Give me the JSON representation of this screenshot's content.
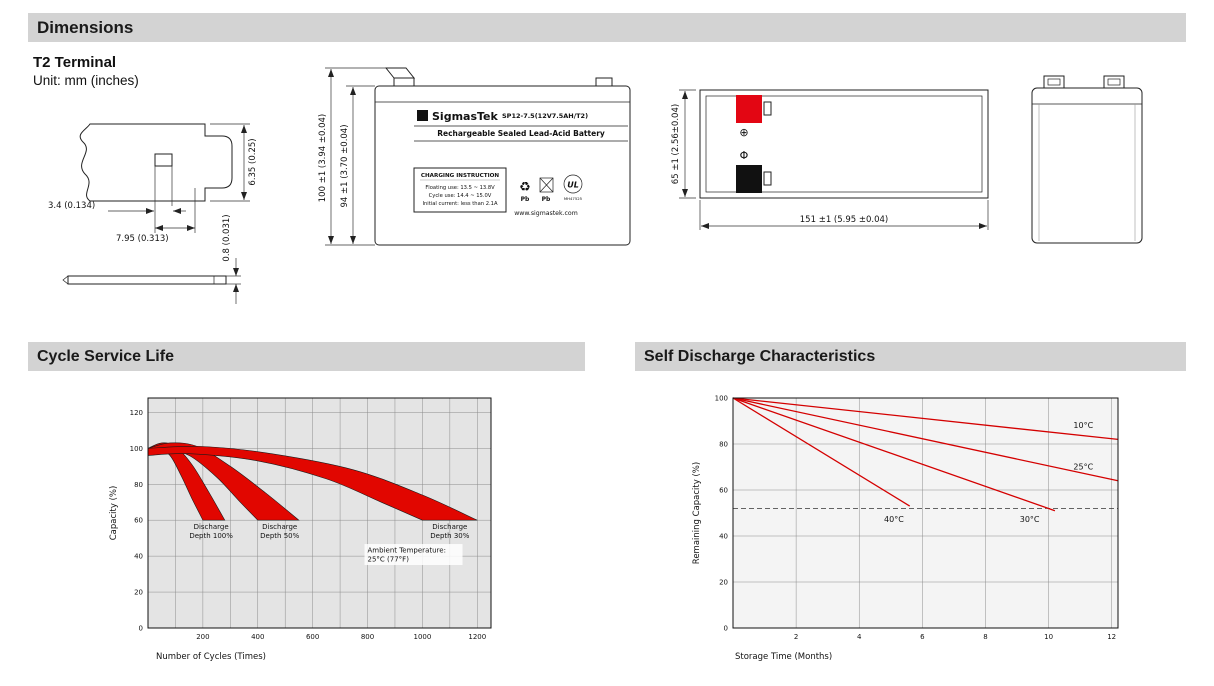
{
  "colors": {
    "header_bg": "#d3d3d3",
    "header_text": "#1a1a1a",
    "terminal_red": "#e30613",
    "terminal_black": "#111111",
    "band_red": "#e10600",
    "line_red": "#d40000"
  },
  "page": {
    "dimensions_title": "Dimensions",
    "terminal_title": "T2 Terminal",
    "unit_label": "Unit: mm (inches)",
    "cycle_section_title": "Cycle Service Life",
    "self_discharge_section_title": "Self Discharge Characteristics"
  },
  "terminal_drawing": {
    "dim_slot_width": "3.4 (0.134)",
    "dim_tab_width": "7.95 (0.313)",
    "dim_height": "6.35 (0.25)",
    "dim_thickness": "0.8 (0.031)"
  },
  "front_view": {
    "dim_total_height": "100 ±1 (3.94 ±0.04)",
    "dim_case_height": "94 ±1 (3.70 ±0.04)",
    "brand_sigma": "Σ",
    "brand": "SigmasTek",
    "model": "SP12-7.5(12V7.5AH/T2)",
    "subtitle": "Rechargeable Sealed Lead-Acid Battery",
    "charging_title": "CHARGING INSTRUCTION",
    "charging_line1": "Floating use: 13.5 ~ 13.8V",
    "charging_line2": "Cycle use: 14.4 ~ 15.0V",
    "charging_line3": "Initial current: less than 2.1A",
    "pb_recycle": "Pb",
    "pb_trash": "Pb",
    "ul_text": "UL",
    "ul_code": "MH47525",
    "website": "www.sigmastek.com"
  },
  "top_view": {
    "dim_height": "65 ±1 (2.56±0.04)",
    "dim_width": "151 ±1 (5.95 ±0.04)",
    "plus_symbol": "⊕",
    "minus_symbol": "Φ"
  },
  "chart_data": [
    {
      "id": "cycle-service-life",
      "type": "area",
      "title": "Cycle Service Life",
      "xlabel": "Number of Cycles (Times)",
      "ylabel": "Capacity (%)",
      "xlim": [
        0,
        1250
      ],
      "ylim": [
        0,
        128
      ],
      "xticks": [
        200,
        400,
        600,
        800,
        1000,
        1200
      ],
      "yticks": [
        0,
        20,
        40,
        60,
        80,
        100,
        120
      ],
      "x_grid_step": 100,
      "y_grid_step": 20,
      "grid": true,
      "legend_position": "none",
      "plot_bg": "#e4e4e4",
      "band_color": "#e10600",
      "bands": [
        {
          "name": "Discharge Depth 100%",
          "end_cycles": 280,
          "upper": [
            [
              0,
              100
            ],
            [
              50,
              103
            ],
            [
              100,
              101
            ],
            [
              160,
              91
            ],
            [
              220,
              76
            ],
            [
              280,
              60
            ]
          ],
          "lower": [
            [
              0,
              96
            ],
            [
              40,
              99
            ],
            [
              80,
              96
            ],
            [
              120,
              85
            ],
            [
              160,
              72
            ],
            [
              200,
              60
            ]
          ],
          "label_x": 230,
          "label_y": 55
        },
        {
          "name": "Discharge Depth 50%",
          "end_cycles": 550,
          "upper": [
            [
              0,
              100
            ],
            [
              80,
              103
            ],
            [
              180,
              101
            ],
            [
              300,
              90
            ],
            [
              430,
              75
            ],
            [
              550,
              60
            ]
          ],
          "lower": [
            [
              0,
              96
            ],
            [
              60,
              99
            ],
            [
              150,
              96
            ],
            [
              250,
              84
            ],
            [
              330,
              71
            ],
            [
              400,
              60
            ]
          ],
          "label_x": 480,
          "label_y": 55
        },
        {
          "name": "Discharge Depth 30%",
          "end_cycles": 1200,
          "upper": [
            [
              0,
              100
            ],
            [
              200,
              101
            ],
            [
              450,
              97
            ],
            [
              750,
              88
            ],
            [
              1000,
              74
            ],
            [
              1200,
              60
            ]
          ],
          "lower": [
            [
              0,
              96
            ],
            [
              150,
              97
            ],
            [
              400,
              93
            ],
            [
              650,
              83
            ],
            [
              850,
              70
            ],
            [
              1000,
              60
            ]
          ],
          "label_x": 1100,
          "label_y": 55
        }
      ],
      "annotation": {
        "x": 800,
        "y": 42,
        "lines": [
          "Ambient Temperature:",
          "25°C (77°F)"
        ]
      }
    },
    {
      "id": "self-discharge",
      "type": "line",
      "title": "Self Discharge Characteristics",
      "xlabel": "Storage Time (Months)",
      "ylabel": "Remaining Capacity (%)",
      "xlim": [
        0,
        12.2
      ],
      "ylim": [
        0,
        100
      ],
      "xticks": [
        2,
        4,
        6,
        8,
        10,
        12
      ],
      "yticks": [
        0,
        20,
        40,
        60,
        80,
        100
      ],
      "x_grid_step": 2,
      "y_grid_step": 20,
      "grid": true,
      "legend_position": "inline-labels",
      "plot_bg": "#f4f4f4",
      "line_color": "#d40000",
      "dashed_line_y": 52,
      "series": [
        {
          "name": "10°C",
          "points": [
            [
              0,
              100
            ],
            [
              12.2,
              82
            ]
          ],
          "label_x": 11.1,
          "label_y": 87
        },
        {
          "name": "25°C",
          "points": [
            [
              0,
              100
            ],
            [
              12.2,
              64
            ]
          ],
          "label_x": 11.1,
          "label_y": 69
        },
        {
          "name": "30°C",
          "points": [
            [
              0,
              100
            ],
            [
              10.2,
              51
            ]
          ],
          "label_x": 9.4,
          "label_y": 46
        },
        {
          "name": "40°C",
          "points": [
            [
              0,
              100
            ],
            [
              5.6,
              53
            ]
          ],
          "label_x": 5.1,
          "label_y": 46
        }
      ]
    }
  ]
}
